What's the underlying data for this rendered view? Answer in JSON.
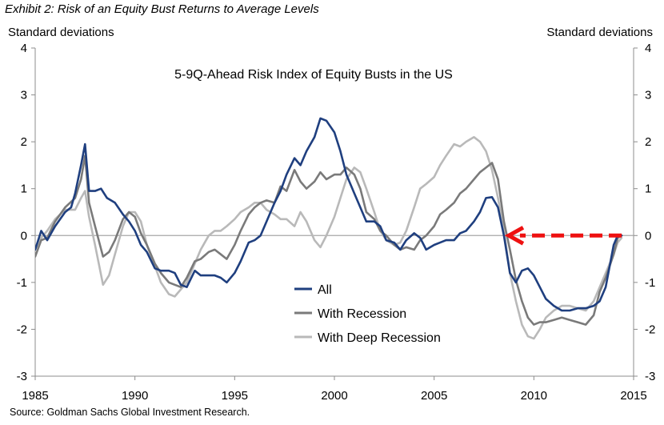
{
  "exhibit_title": "Exhibit 2: Risk of an Equity Bust Returns to Average Levels",
  "source": "Source: Goldman Sachs Global Investment Research.",
  "colors": {
    "all": "#1f3f7f",
    "recession": "#7a7a7a",
    "deep": "#b9b9b9",
    "arrow": "#ee1111",
    "axis": "#8c8c8c",
    "zero": "#a8a8a8"
  },
  "chart_data": {
    "type": "line",
    "title": "5-9Q-Ahead Risk Index of Equity Busts in the US",
    "ylabel": "Standard deviations",
    "ylabel_right": "Standard deviations",
    "xlim": [
      1985,
      2015
    ],
    "ylim": [
      -3,
      4
    ],
    "xticks": [
      1985,
      1990,
      1995,
      2000,
      2005,
      2010,
      2015
    ],
    "yticks": [
      -3,
      -2,
      -1,
      0,
      1,
      2,
      3,
      4
    ],
    "zero_line": true,
    "legend_position": "center-bottom",
    "annotation": "red dashed arrow pointing left to the start of the 2008 decline at about 0",
    "arrow": {
      "from": [
        2014.4,
        0.0
      ],
      "to": [
        2008.5,
        0.0
      ]
    },
    "series": [
      {
        "name": "All",
        "key": "all",
        "width": 2.6,
        "points": [
          [
            1985.0,
            -0.3
          ],
          [
            1985.3,
            0.1
          ],
          [
            1985.6,
            -0.1
          ],
          [
            1986.0,
            0.2
          ],
          [
            1986.5,
            0.5
          ],
          [
            1986.8,
            0.6
          ],
          [
            1987.0,
            0.9
          ],
          [
            1987.3,
            1.5
          ],
          [
            1987.5,
            1.95
          ],
          [
            1987.7,
            0.95
          ],
          [
            1988.0,
            0.95
          ],
          [
            1988.3,
            1.0
          ],
          [
            1988.6,
            0.8
          ],
          [
            1989.0,
            0.7
          ],
          [
            1989.4,
            0.45
          ],
          [
            1989.7,
            0.3
          ],
          [
            1990.0,
            0.1
          ],
          [
            1990.3,
            -0.2
          ],
          [
            1990.6,
            -0.35
          ],
          [
            1991.0,
            -0.7
          ],
          [
            1991.3,
            -0.75
          ],
          [
            1991.7,
            -0.75
          ],
          [
            1992.0,
            -0.8
          ],
          [
            1992.3,
            -1.05
          ],
          [
            1992.6,
            -1.1
          ],
          [
            1993.0,
            -0.75
          ],
          [
            1993.3,
            -0.85
          ],
          [
            1993.7,
            -0.85
          ],
          [
            1994.0,
            -0.85
          ],
          [
            1994.3,
            -0.9
          ],
          [
            1994.6,
            -1.0
          ],
          [
            1995.0,
            -0.8
          ],
          [
            1995.3,
            -0.55
          ],
          [
            1995.7,
            -0.15
          ],
          [
            1996.0,
            -0.1
          ],
          [
            1996.3,
            0.0
          ],
          [
            1996.6,
            0.3
          ],
          [
            1997.0,
            0.7
          ],
          [
            1997.3,
            0.95
          ],
          [
            1997.6,
            1.3
          ],
          [
            1998.0,
            1.65
          ],
          [
            1998.3,
            1.5
          ],
          [
            1998.6,
            1.8
          ],
          [
            1999.0,
            2.1
          ],
          [
            1999.3,
            2.5
          ],
          [
            1999.6,
            2.45
          ],
          [
            2000.0,
            2.2
          ],
          [
            2000.3,
            1.8
          ],
          [
            2000.6,
            1.3
          ],
          [
            2001.0,
            0.9
          ],
          [
            2001.3,
            0.6
          ],
          [
            2001.6,
            0.3
          ],
          [
            2002.0,
            0.3
          ],
          [
            2002.3,
            0.2
          ],
          [
            2002.6,
            -0.1
          ],
          [
            2003.0,
            -0.15
          ],
          [
            2003.3,
            -0.3
          ],
          [
            2003.6,
            -0.1
          ],
          [
            2004.0,
            0.05
          ],
          [
            2004.3,
            -0.05
          ],
          [
            2004.6,
            -0.3
          ],
          [
            2005.0,
            -0.2
          ],
          [
            2005.3,
            -0.15
          ],
          [
            2005.6,
            -0.1
          ],
          [
            2006.0,
            -0.1
          ],
          [
            2006.3,
            0.05
          ],
          [
            2006.6,
            0.1
          ],
          [
            2007.0,
            0.3
          ],
          [
            2007.3,
            0.5
          ],
          [
            2007.6,
            0.8
          ],
          [
            2007.9,
            0.82
          ],
          [
            2008.2,
            0.6
          ],
          [
            2008.5,
            0.0
          ],
          [
            2008.8,
            -0.8
          ],
          [
            2009.1,
            -1.0
          ],
          [
            2009.4,
            -0.75
          ],
          [
            2009.7,
            -0.7
          ],
          [
            2010.0,
            -0.85
          ],
          [
            2010.3,
            -1.1
          ],
          [
            2010.6,
            -1.35
          ],
          [
            2011.0,
            -1.5
          ],
          [
            2011.4,
            -1.6
          ],
          [
            2011.8,
            -1.6
          ],
          [
            2012.2,
            -1.55
          ],
          [
            2012.6,
            -1.55
          ],
          [
            2013.0,
            -1.5
          ],
          [
            2013.3,
            -1.4
          ],
          [
            2013.6,
            -1.1
          ],
          [
            2014.0,
            -0.2
          ],
          [
            2014.2,
            0.0
          ],
          [
            2014.4,
            0.0
          ]
        ]
      },
      {
        "name": "With Recession",
        "key": "recession",
        "width": 2.6,
        "points": [
          [
            1985.0,
            -0.45
          ],
          [
            1985.3,
            -0.1
          ],
          [
            1985.6,
            -0.05
          ],
          [
            1986.0,
            0.3
          ],
          [
            1986.5,
            0.6
          ],
          [
            1987.0,
            0.8
          ],
          [
            1987.3,
            1.2
          ],
          [
            1987.5,
            1.7
          ],
          [
            1987.7,
            0.7
          ],
          [
            1988.0,
            0.2
          ],
          [
            1988.4,
            -0.45
          ],
          [
            1988.7,
            -0.35
          ],
          [
            1989.0,
            -0.1
          ],
          [
            1989.4,
            0.35
          ],
          [
            1989.7,
            0.5
          ],
          [
            1990.0,
            0.4
          ],
          [
            1990.3,
            0.05
          ],
          [
            1990.6,
            -0.2
          ],
          [
            1991.0,
            -0.6
          ],
          [
            1991.3,
            -0.8
          ],
          [
            1991.7,
            -1.0
          ],
          [
            1992.0,
            -1.05
          ],
          [
            1992.3,
            -1.1
          ],
          [
            1992.6,
            -0.9
          ],
          [
            1993.0,
            -0.55
          ],
          [
            1993.3,
            -0.5
          ],
          [
            1993.7,
            -0.35
          ],
          [
            1994.0,
            -0.3
          ],
          [
            1994.3,
            -0.4
          ],
          [
            1994.6,
            -0.5
          ],
          [
            1995.0,
            -0.2
          ],
          [
            1995.3,
            0.1
          ],
          [
            1995.7,
            0.45
          ],
          [
            1996.0,
            0.6
          ],
          [
            1996.3,
            0.7
          ],
          [
            1996.6,
            0.75
          ],
          [
            1997.0,
            0.7
          ],
          [
            1997.3,
            1.05
          ],
          [
            1997.6,
            0.95
          ],
          [
            1998.0,
            1.4
          ],
          [
            1998.3,
            1.15
          ],
          [
            1998.6,
            1.0
          ],
          [
            1999.0,
            1.15
          ],
          [
            1999.3,
            1.35
          ],
          [
            1999.6,
            1.2
          ],
          [
            2000.0,
            1.3
          ],
          [
            2000.3,
            1.3
          ],
          [
            2000.6,
            1.45
          ],
          [
            2001.0,
            1.3
          ],
          [
            2001.3,
            1.0
          ],
          [
            2001.6,
            0.5
          ],
          [
            2002.0,
            0.35
          ],
          [
            2002.3,
            0.1
          ],
          [
            2002.6,
            0.0
          ],
          [
            2003.0,
            -0.2
          ],
          [
            2003.3,
            -0.3
          ],
          [
            2003.6,
            -0.25
          ],
          [
            2004.0,
            -0.3
          ],
          [
            2004.3,
            -0.1
          ],
          [
            2004.6,
            0.0
          ],
          [
            2005.0,
            0.2
          ],
          [
            2005.3,
            0.45
          ],
          [
            2005.6,
            0.55
          ],
          [
            2006.0,
            0.7
          ],
          [
            2006.3,
            0.9
          ],
          [
            2006.6,
            1.0
          ],
          [
            2007.0,
            1.2
          ],
          [
            2007.3,
            1.35
          ],
          [
            2007.6,
            1.45
          ],
          [
            2007.9,
            1.55
          ],
          [
            2008.2,
            1.2
          ],
          [
            2008.5,
            0.3
          ],
          [
            2008.8,
            -0.3
          ],
          [
            2009.1,
            -0.95
          ],
          [
            2009.4,
            -1.4
          ],
          [
            2009.7,
            -1.75
          ],
          [
            2010.0,
            -1.9
          ],
          [
            2010.3,
            -1.85
          ],
          [
            2010.6,
            -1.85
          ],
          [
            2011.0,
            -1.8
          ],
          [
            2011.4,
            -1.75
          ],
          [
            2011.8,
            -1.8
          ],
          [
            2012.2,
            -1.85
          ],
          [
            2012.6,
            -1.9
          ],
          [
            2013.0,
            -1.7
          ],
          [
            2013.3,
            -1.2
          ],
          [
            2013.6,
            -0.9
          ],
          [
            2014.0,
            -0.4
          ],
          [
            2014.2,
            -0.05
          ],
          [
            2014.4,
            0.0
          ]
        ]
      },
      {
        "name": "With Deep Recession",
        "key": "deep",
        "width": 2.6,
        "points": [
          [
            1985.0,
            -0.3
          ],
          [
            1985.3,
            -0.05
          ],
          [
            1985.6,
            0.1
          ],
          [
            1986.0,
            0.35
          ],
          [
            1986.5,
            0.55
          ],
          [
            1987.0,
            0.55
          ],
          [
            1987.3,
            0.8
          ],
          [
            1987.5,
            0.95
          ],
          [
            1987.7,
            0.4
          ],
          [
            1988.0,
            -0.2
          ],
          [
            1988.4,
            -1.05
          ],
          [
            1988.7,
            -0.85
          ],
          [
            1989.0,
            -0.4
          ],
          [
            1989.4,
            0.2
          ],
          [
            1989.7,
            0.5
          ],
          [
            1990.0,
            0.5
          ],
          [
            1990.3,
            0.3
          ],
          [
            1990.6,
            -0.2
          ],
          [
            1991.0,
            -0.65
          ],
          [
            1991.3,
            -1.0
          ],
          [
            1991.7,
            -1.25
          ],
          [
            1992.0,
            -1.3
          ],
          [
            1992.3,
            -1.15
          ],
          [
            1992.6,
            -1.0
          ],
          [
            1993.0,
            -0.6
          ],
          [
            1993.3,
            -0.3
          ],
          [
            1993.7,
            0.0
          ],
          [
            1994.0,
            0.1
          ],
          [
            1994.3,
            0.1
          ],
          [
            1994.6,
            0.2
          ],
          [
            1995.0,
            0.35
          ],
          [
            1995.3,
            0.5
          ],
          [
            1995.7,
            0.6
          ],
          [
            1996.0,
            0.7
          ],
          [
            1996.3,
            0.7
          ],
          [
            1996.6,
            0.55
          ],
          [
            1997.0,
            0.45
          ],
          [
            1997.3,
            0.35
          ],
          [
            1997.6,
            0.35
          ],
          [
            1998.0,
            0.2
          ],
          [
            1998.3,
            0.5
          ],
          [
            1998.6,
            0.3
          ],
          [
            1999.0,
            -0.1
          ],
          [
            1999.3,
            -0.25
          ],
          [
            1999.6,
            0.0
          ],
          [
            2000.0,
            0.4
          ],
          [
            2000.3,
            0.8
          ],
          [
            2000.6,
            1.2
          ],
          [
            2001.0,
            1.45
          ],
          [
            2001.3,
            1.35
          ],
          [
            2001.6,
            1.0
          ],
          [
            2002.0,
            0.5
          ],
          [
            2002.3,
            0.1
          ],
          [
            2002.6,
            -0.1
          ],
          [
            2003.0,
            -0.2
          ],
          [
            2003.3,
            -0.15
          ],
          [
            2003.6,
            0.1
          ],
          [
            2004.0,
            0.6
          ],
          [
            2004.3,
            1.0
          ],
          [
            2004.6,
            1.1
          ],
          [
            2005.0,
            1.25
          ],
          [
            2005.3,
            1.5
          ],
          [
            2005.6,
            1.7
          ],
          [
            2006.0,
            1.95
          ],
          [
            2006.3,
            1.9
          ],
          [
            2006.6,
            2.0
          ],
          [
            2007.0,
            2.1
          ],
          [
            2007.3,
            2.0
          ],
          [
            2007.6,
            1.8
          ],
          [
            2007.9,
            1.4
          ],
          [
            2008.2,
            0.8
          ],
          [
            2008.5,
            0.1
          ],
          [
            2008.8,
            -0.8
          ],
          [
            2009.1,
            -1.4
          ],
          [
            2009.4,
            -1.9
          ],
          [
            2009.7,
            -2.15
          ],
          [
            2010.0,
            -2.2
          ],
          [
            2010.3,
            -2.0
          ],
          [
            2010.6,
            -1.75
          ],
          [
            2011.0,
            -1.6
          ],
          [
            2011.4,
            -1.5
          ],
          [
            2011.8,
            -1.5
          ],
          [
            2012.2,
            -1.55
          ],
          [
            2012.6,
            -1.6
          ],
          [
            2013.0,
            -1.4
          ],
          [
            2013.3,
            -1.1
          ],
          [
            2013.6,
            -0.8
          ],
          [
            2014.0,
            -0.4
          ],
          [
            2014.2,
            -0.15
          ],
          [
            2014.4,
            -0.05
          ]
        ]
      }
    ]
  }
}
